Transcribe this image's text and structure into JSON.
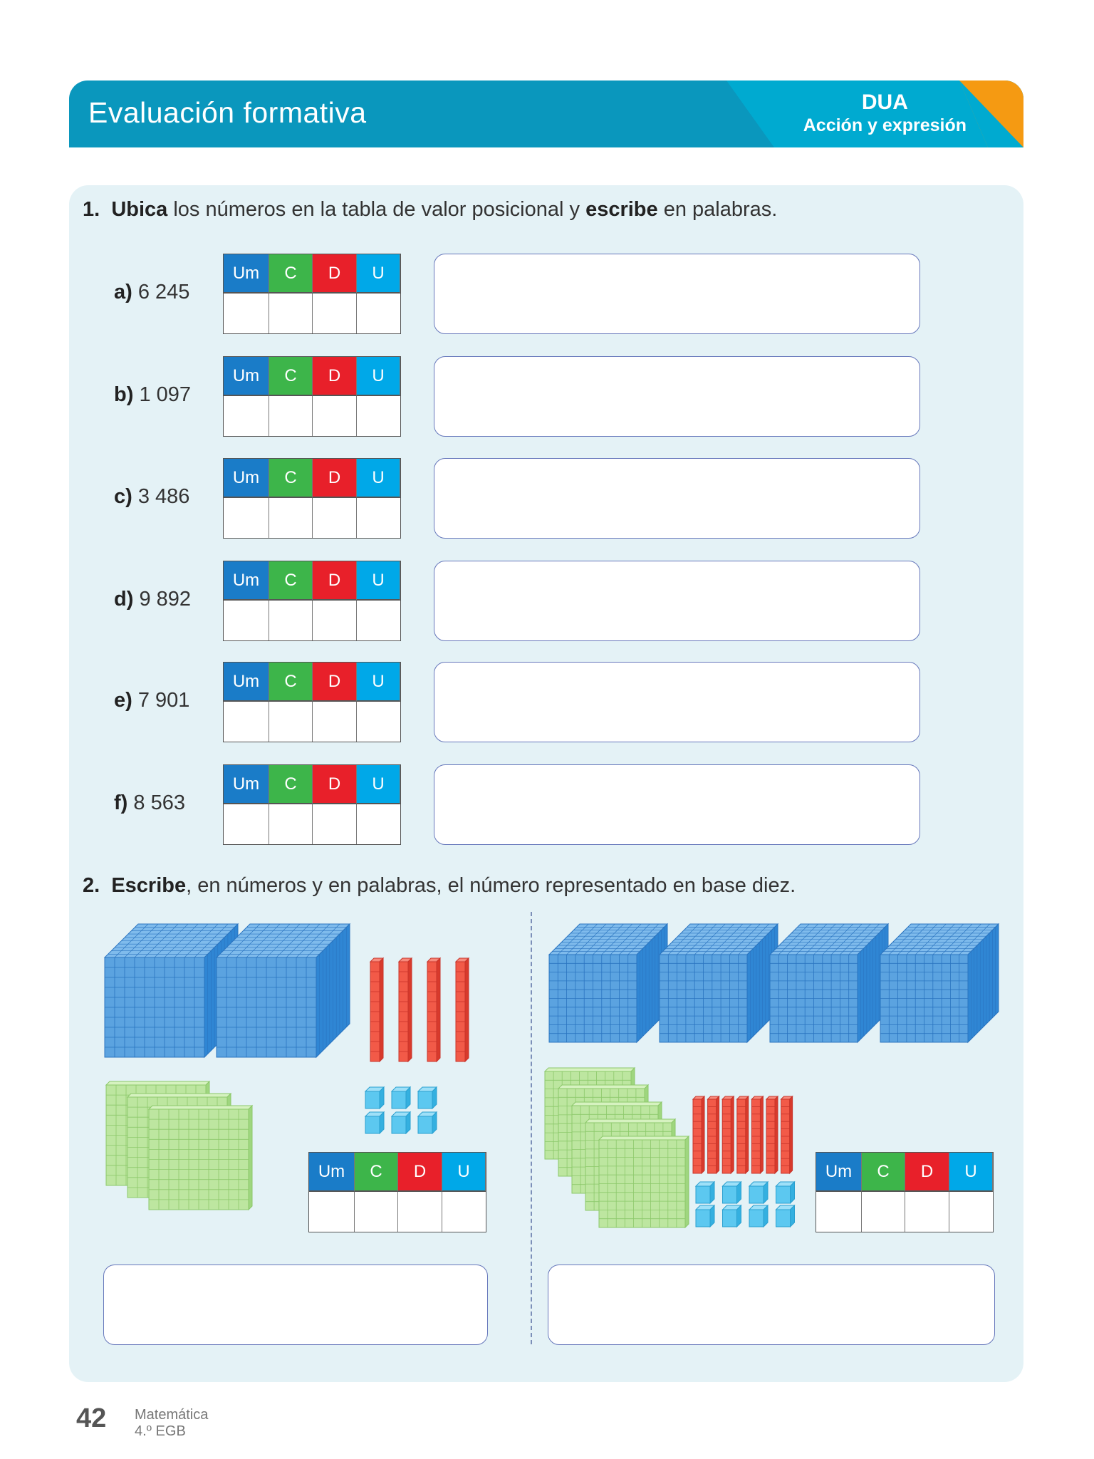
{
  "header": {
    "title": "Evaluación formativa",
    "badge_title": "DUA",
    "badge_subtitle": "Acción y expresión",
    "colors": {
      "header": "#0a97bd",
      "badge": "#00aad0",
      "corner": "#f59a12"
    }
  },
  "q1": {
    "number": "1.",
    "bold1": "Ubica",
    "text1": " los números en la tabla de valor posicional y ",
    "bold2": "escribe",
    "text2": " en palabras.",
    "items": [
      {
        "letter": "a)",
        "value": "6 245"
      },
      {
        "letter": "b)",
        "value": "1 097"
      },
      {
        "letter": "c)",
        "value": "3 486"
      },
      {
        "letter": "d)",
        "value": "9 892"
      },
      {
        "letter": "e)",
        "value": "7 901"
      },
      {
        "letter": "f)",
        "value": "8 563"
      }
    ]
  },
  "table_headers": [
    "Um",
    "C",
    "D",
    "U"
  ],
  "q2": {
    "number": "2.",
    "bold1": "Escribe",
    "text1": ", en números y en palabras, el número representado en base diez.",
    "left": {
      "thousands": 2,
      "hundreds": 3,
      "tens": 4,
      "units": 6
    },
    "right": {
      "thousands": 4,
      "hundreds": 5,
      "tens": 7,
      "units": 8
    }
  },
  "footer": {
    "page": "42",
    "subject": "Matemática",
    "grade": "4.º EGB"
  }
}
